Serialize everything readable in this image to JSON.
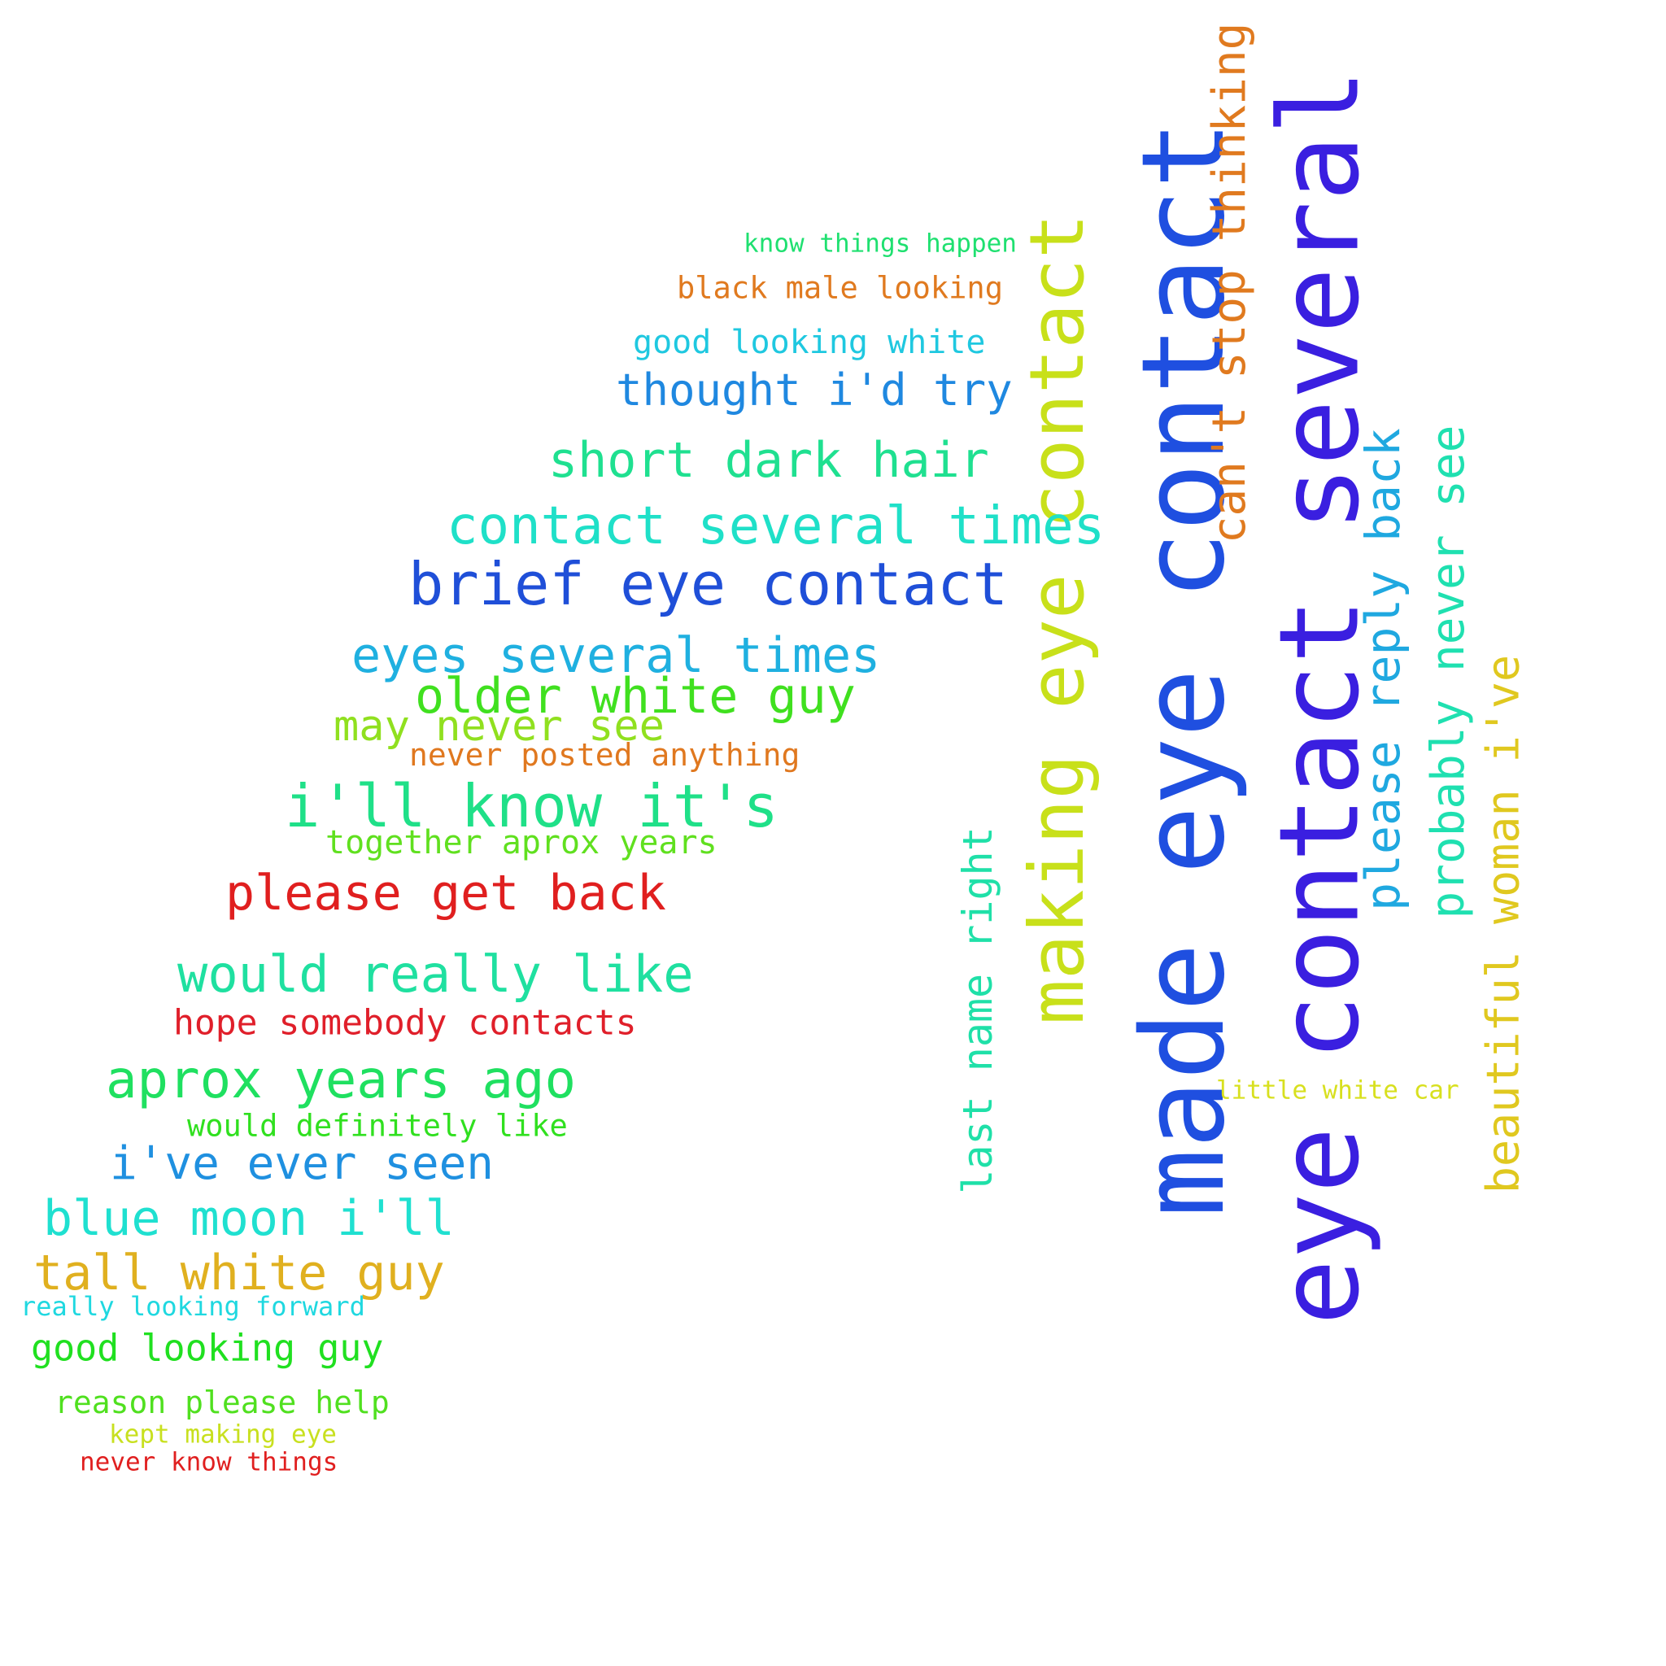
{
  "words": [
    {
      "text": "made eye contact",
      "color": "#1f4fe0"
    },
    {
      "text": "eye contact several",
      "color": "#3a1fe0"
    },
    {
      "text": "making eye contact",
      "color": "#c8e01a"
    },
    {
      "text": "can't stop thinking",
      "color": "#e07a1f"
    },
    {
      "text": "please reply back",
      "color": "#1fa8e0"
    },
    {
      "text": "probably never see",
      "color": "#1fe0b0"
    },
    {
      "text": "beautiful woman i've",
      "color": "#e0c81f"
    },
    {
      "text": "last name right",
      "color": "#1fe0a8"
    },
    {
      "text": "little white car",
      "color": "#d8e01f"
    },
    {
      "text": "know things happen",
      "color": "#1fe070"
    },
    {
      "text": "black male looking",
      "color": "#e07a1f"
    },
    {
      "text": "good looking white",
      "color": "#1fc8e0"
    },
    {
      "text": "thought i'd try",
      "color": "#1f88e0"
    },
    {
      "text": "short dark hair",
      "color": "#1fe090"
    },
    {
      "text": "contact several times",
      "color": "#1fe0c8"
    },
    {
      "text": "brief eye contact",
      "color": "#1f4fd8"
    },
    {
      "text": "eyes several times",
      "color": "#1fb0e0"
    },
    {
      "text": "older white guy",
      "color": "#40e01f"
    },
    {
      "text": "may never see",
      "color": "#90e01f"
    },
    {
      "text": "never posted anything",
      "color": "#e0781f"
    },
    {
      "text": "i'll know it's",
      "color": "#1fe088"
    },
    {
      "text": "together aprox years",
      "color": "#60e01f"
    },
    {
      "text": "please get back",
      "color": "#e01f1f"
    },
    {
      "text": "would really like",
      "color": "#1fe0a0"
    },
    {
      "text": "hope somebody contacts",
      "color": "#e01f2a"
    },
    {
      "text": "aprox years ago",
      "color": "#1fe060"
    },
    {
      "text": "would definitely like",
      "color": "#30e01f"
    },
    {
      "text": "i've ever seen",
      "color": "#1f90e0"
    },
    {
      "text": "blue moon i'll",
      "color": "#1fe0d0"
    },
    {
      "text": "tall white guy",
      "color": "#e0b01f"
    },
    {
      "text": "really looking forward",
      "color": "#1fd8e0"
    },
    {
      "text": "good looking guy",
      "color": "#20e020"
    },
    {
      "text": "reason please help",
      "color": "#50e01f"
    },
    {
      "text": "kept making eye",
      "color": "#c8e01f"
    },
    {
      "text": "never know things",
      "color": "#e01f1f"
    }
  ]
}
